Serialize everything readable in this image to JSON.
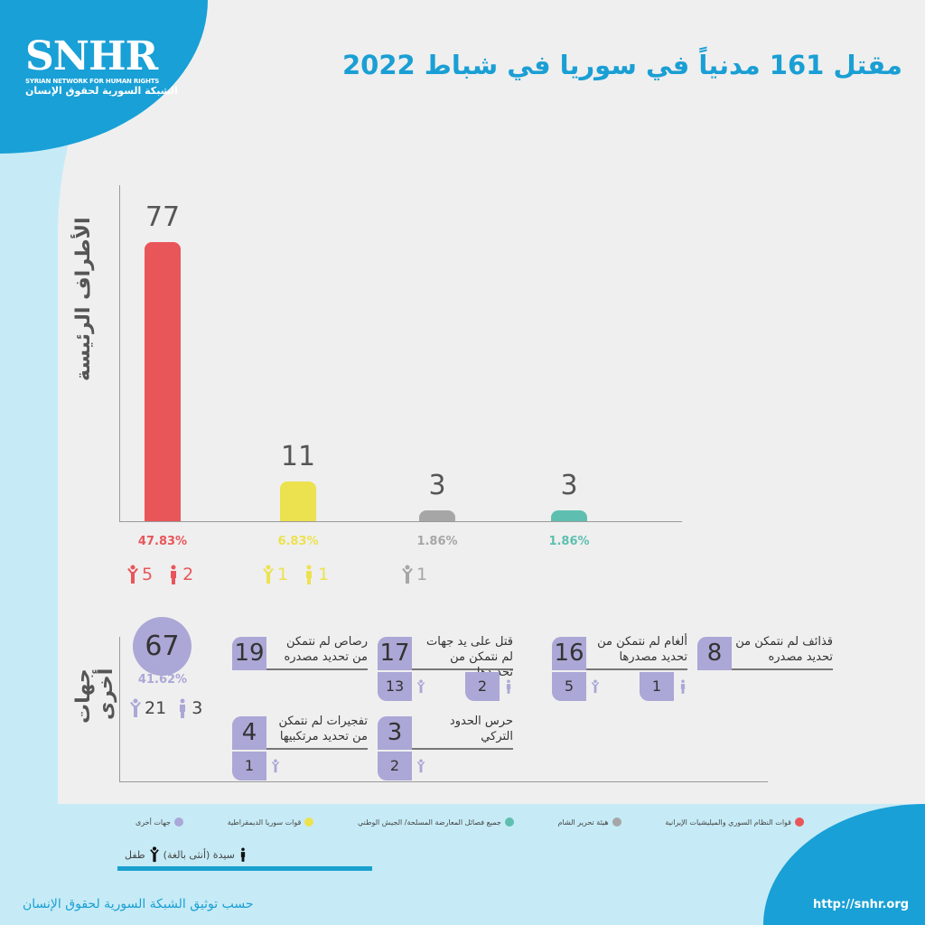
{
  "logo": {
    "mark": "SNHR",
    "english": "SYRIAN NETWORK FOR HUMAN RIGHTS",
    "arabic": "الشبكة السورية لحقوق الإنسان"
  },
  "title": "مقتل 161 مدنياً في سوريا في شباط 2022",
  "chart_data": {
    "type": "bar",
    "ylabel": "الأطراف الرئيسة",
    "categories": [
      "قوات النظام السوري والميليشيات الإيرانية",
      "قوات سوريا الديمقراطية",
      "هيئة تحرير الشام",
      "جميع فصائل المعارضة المسلحة/ الجيش الوطني"
    ],
    "values": [
      77,
      11,
      3,
      3
    ],
    "value_labels": [
      "77",
      "11",
      "3",
      "3"
    ],
    "percents": [
      "47.83%",
      "6.83%",
      "1.86%",
      "1.86%"
    ],
    "colors": [
      "#e8565a",
      "#ece24f",
      "#a6a6a6",
      "#5ebfb0"
    ],
    "children": [
      "5",
      "1",
      "1",
      ""
    ],
    "women": [
      "2",
      "1",
      "",
      ""
    ],
    "ylim": [
      0,
      77
    ]
  },
  "others": {
    "label": "جهات أخرى",
    "total": "67",
    "percent": "41.62%",
    "children": "21",
    "women": "3",
    "color": "#aba7d6",
    "items": [
      {
        "num": "8",
        "label": "قذائف لم نتمكن من تحديد مصدره"
      },
      {
        "num": "16",
        "label": "ألغام لم نتمكن من تحديد مصدرها",
        "children": "5",
        "women": "1"
      },
      {
        "num": "17",
        "label": "قتل على يد جهات لم نتمكن من تحديدها",
        "children": "13",
        "women": "2"
      },
      {
        "num": "19",
        "label": "رصاص لم نتمكن من تحديد مصدره"
      },
      {
        "num": "3",
        "label": "حرس الحدود التركي",
        "children": "2"
      },
      {
        "num": "4",
        "label": "تفجيرات لم نتمكن من تحديد مرتكبيها",
        "children": "1"
      }
    ]
  },
  "legend": [
    {
      "label": "قوات النظام السوري والميليشيات الإيرانية",
      "color": "#e8565a"
    },
    {
      "label": "هيئة تحرير الشام",
      "color": "#a6a6a6"
    },
    {
      "label": "جميع فصائل المعارضة المسلحة/ الجيش الوطني",
      "color": "#5ebfb0"
    },
    {
      "label": "قوات سوريا الديمقراطية",
      "color": "#ece24f"
    },
    {
      "label": "جهات أخرى",
      "color": "#aba7d6"
    }
  ],
  "key": {
    "woman": "سيدة (أنثى بالغة)",
    "child": "طفل"
  },
  "footer": {
    "source": "حسب توثيق الشبكة السورية لحقوق الإنسان",
    "url": "http://snhr.org"
  }
}
